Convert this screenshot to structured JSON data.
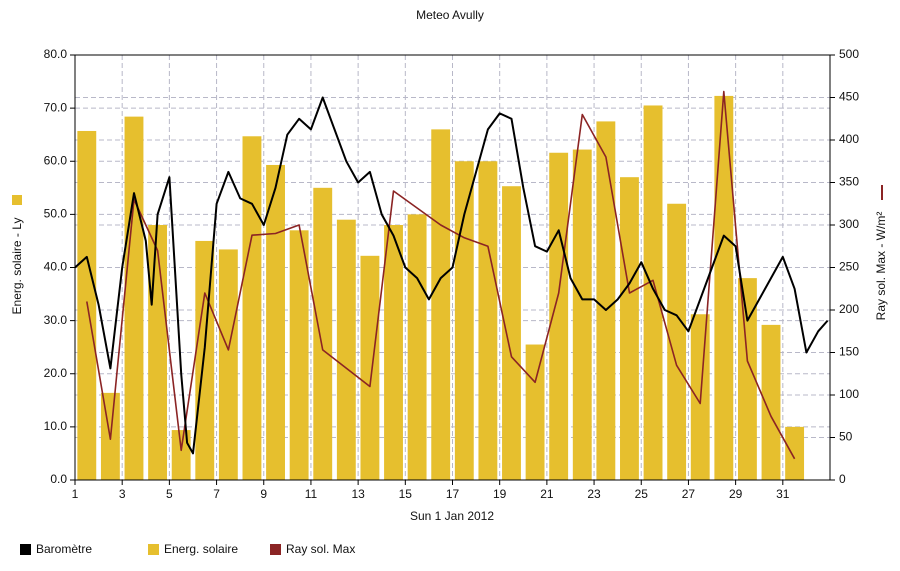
{
  "chart_data": {
    "type": "combo",
    "title": "Meteo  Avully",
    "x_label": "Sun 1 Jan 2012",
    "y_label": "Energ. solaire - Ly",
    "y2_label": "Ray sol. Max - W/m²",
    "xlim": [
      1,
      33
    ],
    "xticks": [
      1,
      3,
      5,
      7,
      9,
      11,
      13,
      15,
      17,
      19,
      21,
      23,
      25,
      27,
      29,
      31
    ],
    "ylim": [
      0,
      80
    ],
    "yticks": [
      {
        "value": 0,
        "label": "0.0"
      },
      {
        "value": 10,
        "label": "10.0"
      },
      {
        "value": 20,
        "label": "20.0"
      },
      {
        "value": 30,
        "label": "30.0"
      },
      {
        "value": 40,
        "label": "40.0"
      },
      {
        "value": 50,
        "label": "50.0"
      },
      {
        "value": 60,
        "label": "60.0"
      },
      {
        "value": 70,
        "label": "70.0"
      },
      {
        "value": 80,
        "label": "80.0"
      }
    ],
    "y2lim": [
      0,
      500
    ],
    "y2ticks": [
      0,
      50,
      100,
      150,
      200,
      250,
      300,
      350,
      400,
      450,
      500
    ],
    "grid": true,
    "series": [
      {
        "name": "Baromètre",
        "type": "line",
        "color": "#000000",
        "x": [
          1,
          1.5,
          2,
          2.5,
          3,
          3.5,
          4,
          4.25,
          4.5,
          5,
          5.5,
          5.75,
          6,
          6.5,
          7,
          7.5,
          8,
          8.5,
          9,
          9.5,
          10,
          10.5,
          11,
          11.5,
          12,
          12.5,
          13,
          13.5,
          14,
          14.5,
          15,
          15.5,
          16,
          16.5,
          17,
          17.5,
          18,
          18.5,
          19,
          19.5,
          20,
          20.5,
          21,
          21.5,
          22,
          22.5,
          23,
          23.5,
          24,
          24.5,
          25,
          25.5,
          26,
          26.5,
          27,
          27.5,
          28,
          28.5,
          29,
          29.5,
          30,
          30.5,
          31,
          31.5,
          32,
          32.5,
          32.9
        ],
        "values": [
          40,
          42,
          33,
          21,
          40,
          54,
          45,
          33,
          50,
          57,
          20,
          7,
          5,
          25,
          52,
          58,
          53,
          52,
          48,
          55,
          65,
          68,
          66,
          72,
          66,
          60,
          56,
          58,
          50,
          46,
          40,
          38,
          34,
          38,
          40,
          50,
          58,
          66,
          69,
          68,
          55,
          44,
          43,
          47,
          38,
          34,
          34,
          32,
          34,
          37,
          41,
          36,
          32,
          31,
          28,
          34,
          40,
          46,
          44,
          30,
          34,
          38,
          42,
          36,
          24,
          28,
          30
        ]
      },
      {
        "name": "Energ. solaire",
        "type": "bar",
        "color": "#e6bf2e",
        "x": [
          1.5,
          2.5,
          3.5,
          4.5,
          5.5,
          6.5,
          7.5,
          8.5,
          9.5,
          10.5,
          11.5,
          12.5,
          13.5,
          14.5,
          15.5,
          16.5,
          17.5,
          18.5,
          19.5,
          20.5,
          21.5,
          22.5,
          23.5,
          24.5,
          25.5,
          26.5,
          27.5,
          28.5,
          29.5,
          30.5,
          31.5
        ],
        "values": [
          65.7,
          16.4,
          68.4,
          48.0,
          9.4,
          45.0,
          43.4,
          64.7,
          59.3,
          47.0,
          55.0,
          49.0,
          42.2,
          48.0,
          50.0,
          66.0,
          60.0,
          60.0,
          55.3,
          25.5,
          61.6,
          62.2,
          67.5,
          57.0,
          70.5,
          52.0,
          31.2,
          72.3,
          38.0,
          29.2,
          10.0
        ]
      },
      {
        "name": "Ray sol. Max",
        "type": "line",
        "axis": "y2",
        "color": "#8b2424",
        "x": [
          1.5,
          2.5,
          3.5,
          4.5,
          5.5,
          6.5,
          7.5,
          8.5,
          9.5,
          10.5,
          11.5,
          13.5,
          14.5,
          16.5,
          17.5,
          18.5,
          19.5,
          20.5,
          21.5,
          22.5,
          23.5,
          24.5,
          25.5,
          26.5,
          27.5,
          28.5,
          29.5,
          30.5,
          31.5
        ],
        "values": [
          210,
          48,
          330,
          270,
          35,
          220,
          153,
          288,
          290,
          300,
          153,
          110,
          340,
          300,
          285,
          275,
          145,
          115,
          220,
          430,
          380,
          220,
          235,
          135,
          90,
          457,
          140,
          75,
          25
        ]
      }
    ]
  }
}
